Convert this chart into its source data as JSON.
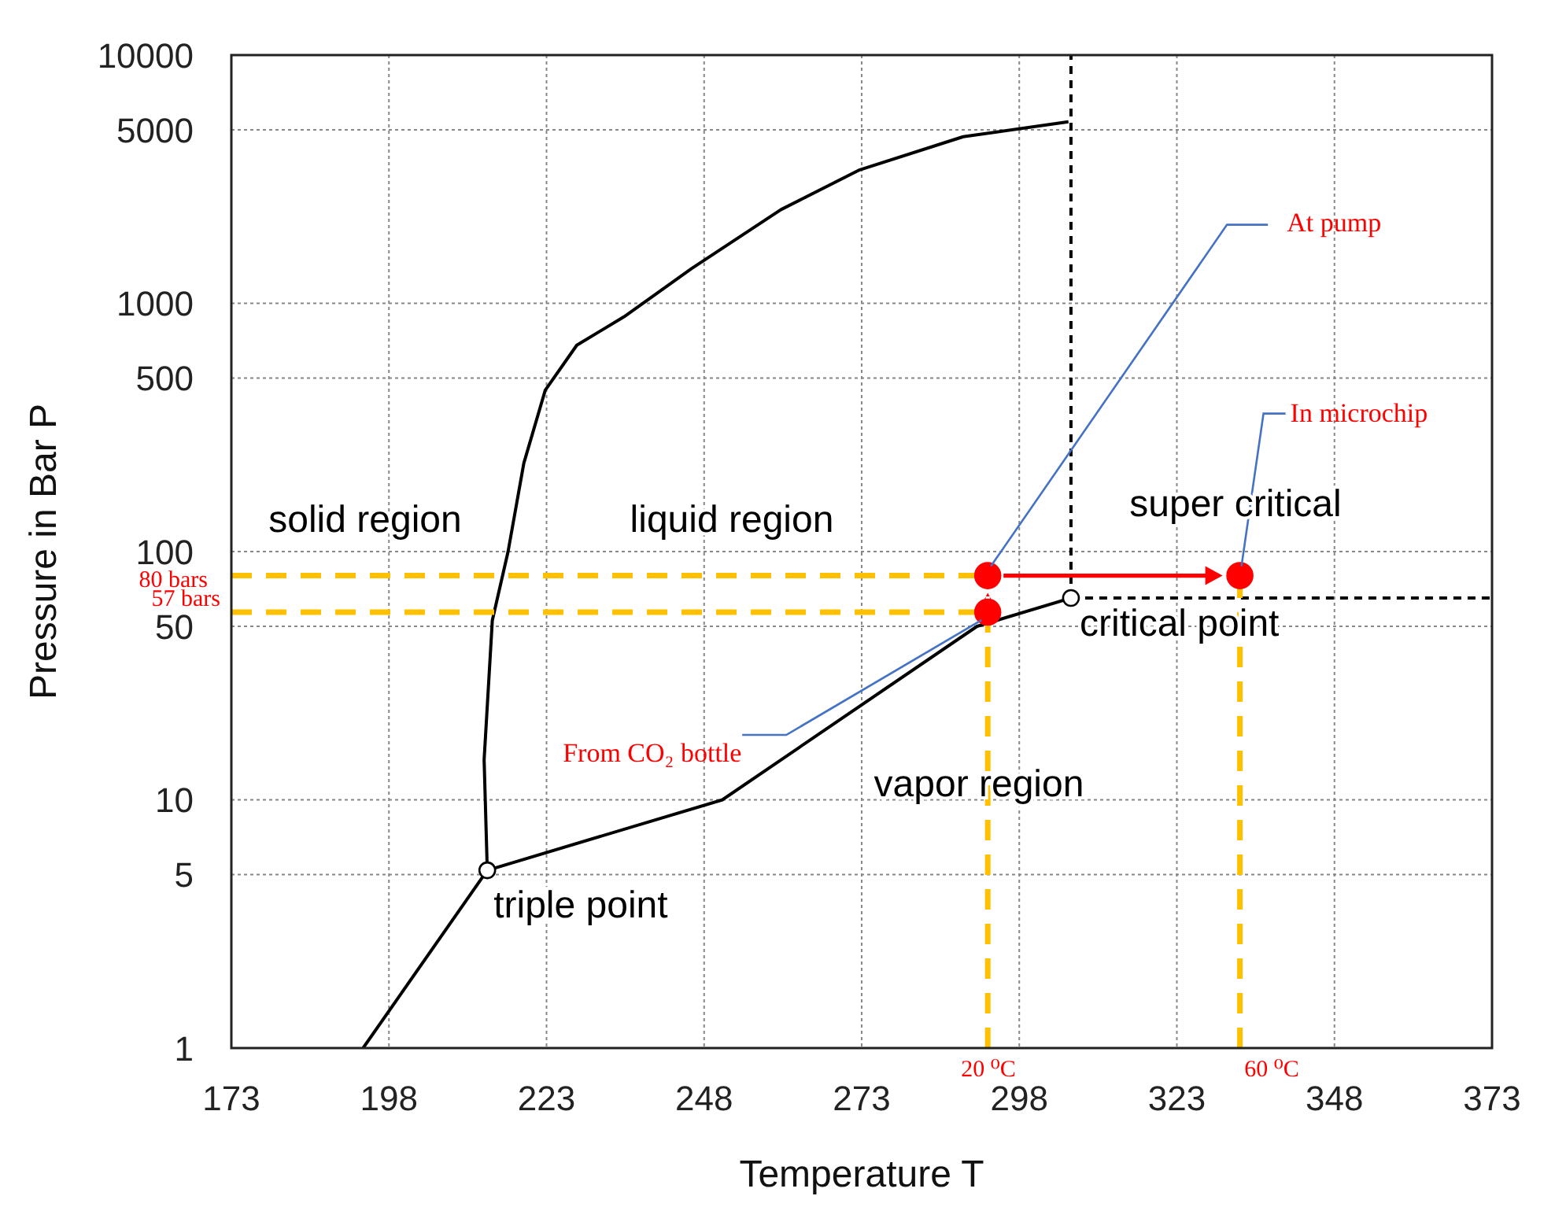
{
  "chart_data": {
    "type": "line",
    "xlabel": "Temperature T",
    "ylabel": "Pressure in Bar P",
    "xlim": [
      173,
      373
    ],
    "xticks": [
      173,
      198,
      223,
      248,
      273,
      298,
      323,
      348,
      373
    ],
    "ylim": [
      1,
      10000
    ],
    "yticks": [
      1,
      5,
      10,
      50,
      100,
      500,
      1000,
      5000,
      10000
    ],
    "log": "y",
    "grid": true,
    "marker": "none",
    "line_style": "solid",
    "series": [
      {
        "color": "#000000",
        "x": [
          193.9,
          213.6
        ],
        "values": [
          1,
          5.2
        ]
      },
      {
        "color": "#000000",
        "x": [
          213.6,
          250.9,
          291.3,
          306.2
        ],
        "values": [
          5.2,
          10,
          50,
          65
        ]
      },
      {
        "color": "#000000",
        "x": [
          213.6,
          213.1,
          214.4,
          216.9,
          219.4,
          222.8,
          227.8,
          235.3,
          246.0,
          260.2,
          272.7,
          289.1,
          305.8
        ],
        "values": [
          5.2,
          14.5,
          52.8,
          100,
          227,
          447,
          678,
          883,
          1380,
          2386,
          3450,
          4690,
          5390
        ]
      },
      {
        "color": "#000000",
        "line_style": "dashed",
        "x": [
          306.2,
          306.2
        ],
        "values": [
          65,
          10000
        ]
      },
      {
        "color": "#000000",
        "line_style": "dashed",
        "x": [
          306.2,
          373
        ],
        "values": [
          65,
          65
        ]
      },
      {
        "color": "#ffc000",
        "line_style": "dashed",
        "x": [
          173,
          293
        ],
        "values": [
          80,
          80
        ]
      },
      {
        "color": "#ffc000",
        "line_style": "dashed",
        "x": [
          173,
          293
        ],
        "values": [
          57,
          57
        ]
      },
      {
        "color": "#ffc000",
        "line_style": "dashed",
        "x": [
          293,
          293
        ],
        "values": [
          1,
          57
        ]
      },
      {
        "color": "#ffc000",
        "line_style": "dashed",
        "x": [
          333,
          333
        ],
        "values": [
          1,
          80
        ]
      },
      {
        "type": "scatter",
        "color": "#ff0000",
        "marker": "circle",
        "x": [
          293,
          293,
          333
        ],
        "values": [
          57,
          80,
          80
        ]
      },
      {
        "type": "scatter",
        "color": "#ffffff",
        "marker": "circle",
        "x": [
          213.6,
          306.2
        ],
        "values": [
          5.2,
          65
        ]
      }
    ],
    "annotations": [
      "solid region",
      "liquid region",
      "super critical",
      "vapor region",
      {
        "text": "triple point",
        "x": 213.6,
        "y": 5.2
      },
      "critical point",
      {
        "text": "At pump",
        "x": 293,
        "y": 80
      },
      {
        "text": "In microchip",
        "x": 333,
        "y": 80
      },
      {
        "text": "From CO₂ bottle",
        "x": 293,
        "y": 57
      },
      "80 bars",
      "57 bars",
      "20 ⁰C",
      "60 ⁰C"
    ]
  }
}
